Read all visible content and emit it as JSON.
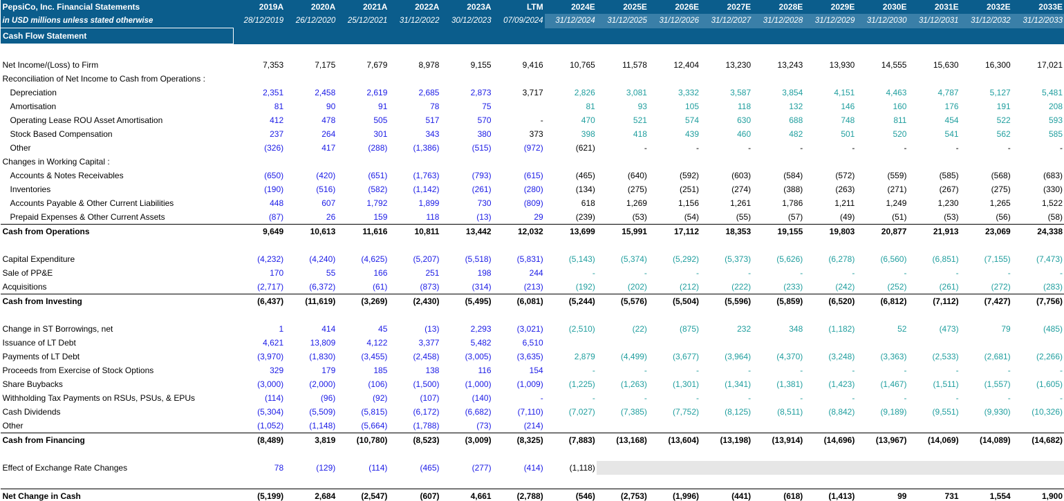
{
  "header": {
    "company": "PepsiCo, Inc. Financial Statements",
    "units": "in USD millions unless stated otherwise",
    "periods": [
      "2019A",
      "2020A",
      "2021A",
      "2022A",
      "2023A",
      "LTM",
      "2024E",
      "2025E",
      "2026E",
      "2027E",
      "2028E",
      "2029E",
      "2030E",
      "2031E",
      "2032E",
      "2033E"
    ],
    "dates": [
      "28/12/2019",
      "26/12/2020",
      "25/12/2021",
      "31/12/2022",
      "30/12/2023",
      "07/09/2024",
      "31/12/2024",
      "31/12/2025",
      "31/12/2026",
      "31/12/2027",
      "31/12/2028",
      "31/12/2029",
      "31/12/2030",
      "31/12/2031",
      "31/12/2032",
      "31/12/2033"
    ]
  },
  "section_title": "Cash Flow Statement",
  "rows": {
    "net_income": {
      "label": "Net Income/(Loss) to Firm",
      "values": [
        "7,353",
        "7,175",
        "7,679",
        "8,978",
        "9,155",
        "9,416",
        "10,765",
        "11,578",
        "12,404",
        "13,230",
        "13,243",
        "13,930",
        "14,555",
        "15,630",
        "16,300",
        "17,021"
      ]
    },
    "recon": {
      "label": "Reconciliation of Net Income to Cash from Operations :"
    },
    "depreciation": {
      "label": "Depreciation",
      "values": [
        "2,351",
        "2,458",
        "2,619",
        "2,685",
        "2,873",
        "3,717",
        "2,826",
        "3,081",
        "3,332",
        "3,587",
        "3,854",
        "4,151",
        "4,463",
        "4,787",
        "5,127",
        "5,481"
      ]
    },
    "amortisation": {
      "label": "Amortisation",
      "values": [
        "81",
        "90",
        "91",
        "78",
        "75",
        "",
        "81",
        "93",
        "105",
        "118",
        "132",
        "146",
        "160",
        "176",
        "191",
        "208"
      ]
    },
    "rou": {
      "label": "Operating Lease ROU Asset Amortisation",
      "values": [
        "412",
        "478",
        "505",
        "517",
        "570",
        "-",
        "470",
        "521",
        "574",
        "630",
        "688",
        "748",
        "811",
        "454",
        "522",
        "593"
      ]
    },
    "sbc": {
      "label": "Stock Based Compensation",
      "values": [
        "237",
        "264",
        "301",
        "343",
        "380",
        "373",
        "398",
        "418",
        "439",
        "460",
        "482",
        "501",
        "520",
        "541",
        "562",
        "585"
      ]
    },
    "other_ops": {
      "label": "Other",
      "values": [
        "(326)",
        "417",
        "(288)",
        "(1,386)",
        "(515)",
        "(972)",
        "(621)",
        "-",
        "-",
        "-",
        "-",
        "-",
        "-",
        "-",
        "-",
        "-"
      ]
    },
    "wc": {
      "label": "Changes in Working Capital :"
    },
    "receivables": {
      "label": "Accounts & Notes Receivables",
      "values": [
        "(650)",
        "(420)",
        "(651)",
        "(1,763)",
        "(793)",
        "(615)",
        "(465)",
        "(640)",
        "(592)",
        "(603)",
        "(584)",
        "(572)",
        "(559)",
        "(585)",
        "(568)",
        "(683)"
      ]
    },
    "inventories": {
      "label": "Inventories",
      "values": [
        "(190)",
        "(516)",
        "(582)",
        "(1,142)",
        "(261)",
        "(280)",
        "(134)",
        "(275)",
        "(251)",
        "(274)",
        "(388)",
        "(263)",
        "(271)",
        "(267)",
        "(275)",
        "(330)"
      ]
    },
    "payables": {
      "label": "Accounts Payable & Other Current Liabilities",
      "values": [
        "448",
        "607",
        "1,792",
        "1,899",
        "730",
        "(809)",
        "618",
        "1,269",
        "1,156",
        "1,261",
        "1,786",
        "1,211",
        "1,249",
        "1,230",
        "1,265",
        "1,522"
      ]
    },
    "prepaid": {
      "label": "Prepaid Expenses & Other Current Assets",
      "values": [
        "(87)",
        "26",
        "159",
        "118",
        "(13)",
        "29",
        "(239)",
        "(53)",
        "(54)",
        "(55)",
        "(57)",
        "(49)",
        "(51)",
        "(53)",
        "(56)",
        "(58)"
      ]
    },
    "cfo": {
      "label": "Cash from Operations",
      "values": [
        "9,649",
        "10,613",
        "11,616",
        "10,811",
        "13,442",
        "12,032",
        "13,699",
        "15,991",
        "17,112",
        "18,353",
        "19,155",
        "19,803",
        "20,877",
        "21,913",
        "23,069",
        "24,338"
      ]
    },
    "capex": {
      "label": "Capital Expenditure",
      "values": [
        "(4,232)",
        "(4,240)",
        "(4,625)",
        "(5,207)",
        "(5,518)",
        "(5,831)",
        "(5,143)",
        "(5,374)",
        "(5,292)",
        "(5,373)",
        "(5,626)",
        "(6,278)",
        "(6,560)",
        "(6,851)",
        "(7,155)",
        "(7,473)"
      ]
    },
    "sale_ppe": {
      "label": "Sale of PP&E",
      "values": [
        "170",
        "55",
        "166",
        "251",
        "198",
        "244",
        "-",
        "-",
        "-",
        "-",
        "-",
        "-",
        "-",
        "-",
        "-",
        "-"
      ]
    },
    "acquisitions": {
      "label": "Acquisitions",
      "values": [
        "(2,717)",
        "(6,372)",
        "(61)",
        "(873)",
        "(314)",
        "(213)",
        "(192)",
        "(202)",
        "(212)",
        "(222)",
        "(233)",
        "(242)",
        "(252)",
        "(261)",
        "(272)",
        "(283)"
      ]
    },
    "cfi": {
      "label": "Cash from Investing",
      "values": [
        "(6,437)",
        "(11,619)",
        "(3,269)",
        "(2,430)",
        "(5,495)",
        "(6,081)",
        "(5,244)",
        "(5,576)",
        "(5,504)",
        "(5,596)",
        "(5,859)",
        "(6,520)",
        "(6,812)",
        "(7,112)",
        "(7,427)",
        "(7,756)"
      ]
    },
    "st_borrow": {
      "label": "Change in ST Borrowings, net",
      "values": [
        "1",
        "414",
        "45",
        "(13)",
        "2,293",
        "(3,021)",
        "(2,510)",
        "(22)",
        "(875)",
        "232",
        "348",
        "(1,182)",
        "52",
        "(473)",
        "79",
        "(485)"
      ]
    },
    "issue_lt": {
      "label": "Issuance of LT Debt",
      "values": [
        "4,621",
        "13,809",
        "4,122",
        "3,377",
        "5,482",
        "6,510",
        "",
        "",
        "",
        "",
        "",
        "",
        "",
        "",
        "",
        ""
      ]
    },
    "pay_lt": {
      "label": "Payments of LT Debt",
      "values": [
        "(3,970)",
        "(1,830)",
        "(3,455)",
        "(2,458)",
        "(3,005)",
        "(3,635)",
        "2,879",
        "(4,499)",
        "(3,677)",
        "(3,964)",
        "(4,370)",
        "(3,248)",
        "(3,363)",
        "(2,533)",
        "(2,681)",
        "(2,266)"
      ]
    },
    "options": {
      "label": "Proceeds from Exercise of Stock Options",
      "values": [
        "329",
        "179",
        "185",
        "138",
        "116",
        "154",
        "-",
        "-",
        "-",
        "-",
        "-",
        "-",
        "-",
        "-",
        "-",
        "-"
      ]
    },
    "buybacks": {
      "label": "Share Buybacks",
      "values": [
        "(3,000)",
        "(2,000)",
        "(106)",
        "(1,500)",
        "(1,000)",
        "(1,009)",
        "(1,225)",
        "(1,263)",
        "(1,301)",
        "(1,341)",
        "(1,381)",
        "(1,423)",
        "(1,467)",
        "(1,511)",
        "(1,557)",
        "(1,605)"
      ]
    },
    "withholding": {
      "label": "Withholding Tax Payments on RSUs, PSUs, & EPUs",
      "values": [
        "(114)",
        "(96)",
        "(92)",
        "(107)",
        "(140)",
        "-",
        "-",
        "-",
        "-",
        "-",
        "-",
        "-",
        "-",
        "-",
        "-",
        "-"
      ]
    },
    "dividends": {
      "label": "Cash Dividends",
      "values": [
        "(5,304)",
        "(5,509)",
        "(5,815)",
        "(6,172)",
        "(6,682)",
        "(7,110)",
        "(7,027)",
        "(7,385)",
        "(7,752)",
        "(8,125)",
        "(8,511)",
        "(8,842)",
        "(9,189)",
        "(9,551)",
        "(9,930)",
        "(10,326)"
      ]
    },
    "other_fin": {
      "label": "Other",
      "values": [
        "(1,052)",
        "(1,148)",
        "(5,664)",
        "(1,788)",
        "(73)",
        "(214)",
        "",
        "",
        "",
        "",
        "",
        "",
        "",
        "",
        "",
        ""
      ]
    },
    "cff": {
      "label": "Cash from Financing",
      "values": [
        "(8,489)",
        "3,819",
        "(10,780)",
        "(8,523)",
        "(3,009)",
        "(8,325)",
        "(7,883)",
        "(13,168)",
        "(13,604)",
        "(13,198)",
        "(13,914)",
        "(14,696)",
        "(13,967)",
        "(14,069)",
        "(14,089)",
        "(14,682)"
      ]
    },
    "fx": {
      "label": "Effect of Exchange Rate Changes",
      "values": [
        "78",
        "(129)",
        "(114)",
        "(465)",
        "(277)",
        "(414)",
        "(1,118)"
      ]
    },
    "net_change": {
      "label": "Net Change in Cash",
      "values": [
        "(5,199)",
        "2,684",
        "(2,547)",
        "(607)",
        "4,661",
        "(2,788)",
        "(546)",
        "(2,753)",
        "(1,996)",
        "(441)",
        "(618)",
        "(1,413)",
        "99",
        "731",
        "1,554",
        "1,900"
      ]
    }
  },
  "colors": {
    "header_bg": "#0b5d8c",
    "input_blue": "#1a1ae6",
    "forecast_teal": "#1f9e9e"
  }
}
